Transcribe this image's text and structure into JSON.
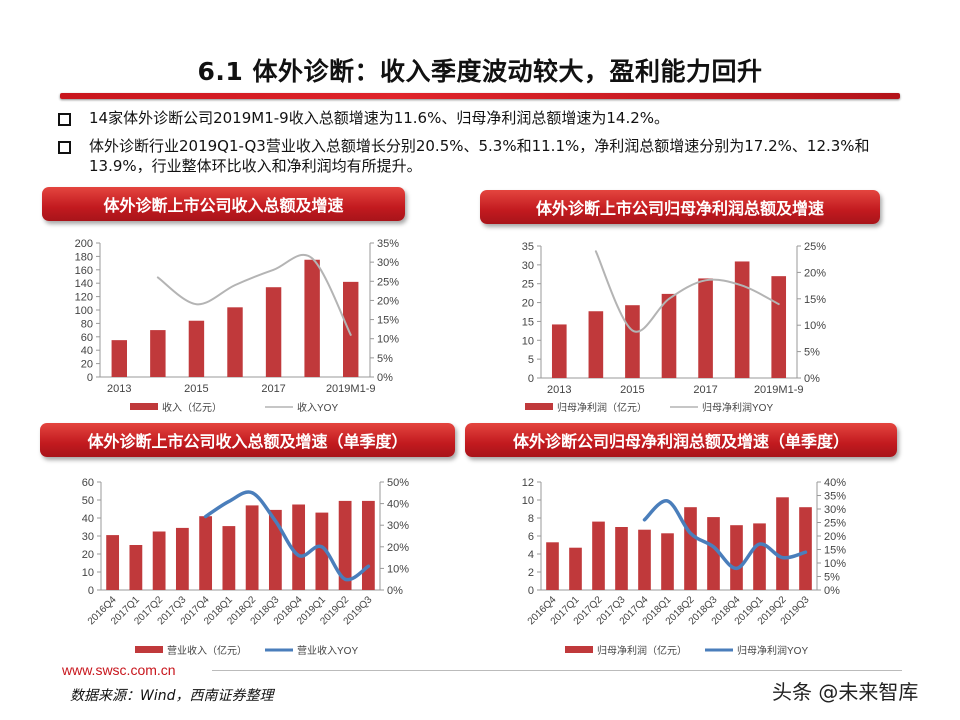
{
  "slide": {
    "title": "6.1 体外诊断：收入季度波动较大，盈利能力回升",
    "bullets": [
      "14家体外诊断公司2019M1-9收入总额增速为11.6%、归母净利润总额增速为14.2%。",
      "体外诊断行业2019Q1-Q3营业收入总额增长分别20.5%、5.3%和11.1%，净利润总额增速分别为17.2%、12.3%和13.9%，行业整体环比收入和净利润均有所提升。"
    ],
    "website": "www.swsc.com.cn",
    "source": "数据来源：Wind，西南证券整理",
    "watermark": "头条 @未来智库",
    "colors": {
      "accent": "#c8161d",
      "bar": "#c0393b",
      "line_gray": "#b4b4b4",
      "line_blue": "#4a7ebb"
    }
  },
  "chart_data": [
    {
      "banner": "体外诊断上市公司收入总额及增速",
      "type": "bar+line",
      "x_tick_labels": [
        "2013",
        "",
        "2015",
        "",
        "2017",
        "",
        "2019M1-9"
      ],
      "series": [
        {
          "name": "收入（亿元）",
          "type": "bar",
          "axis": "left",
          "values": [
            55,
            70,
            84,
            104,
            134,
            175,
            142
          ]
        },
        {
          "name": "收入YOY",
          "type": "line",
          "axis": "right",
          "values": [
            null,
            26,
            19,
            24,
            28,
            31,
            11
          ]
        }
      ],
      "y_left": {
        "range": [
          0,
          200
        ],
        "ticks": [
          "0",
          "20",
          "40",
          "60",
          "80",
          "100",
          "120",
          "140",
          "160",
          "180",
          "200"
        ]
      },
      "y_right": {
        "range": [
          0,
          35
        ],
        "ticks": [
          "0%",
          "5%",
          "10%",
          "15%",
          "20%",
          "25%",
          "30%",
          "35%"
        ]
      },
      "line_style": "gray-thin",
      "legend": "bottom",
      "grid": false
    },
    {
      "banner": "体外诊断上市公司归母净利润总额及增速",
      "type": "bar+line",
      "x_tick_labels": [
        "2013",
        "",
        "2015",
        "",
        "2017",
        "",
        "2019M1-9"
      ],
      "series": [
        {
          "name": "归母净利润（亿元）",
          "type": "bar",
          "axis": "left",
          "values": [
            14.2,
            17.7,
            19.3,
            22.3,
            26.4,
            30.9,
            27.0
          ]
        },
        {
          "name": "归母净利润YOY",
          "type": "line",
          "axis": "right",
          "values": [
            null,
            24,
            9,
            15,
            18.5,
            17.5,
            14
          ]
        }
      ],
      "y_left": {
        "range": [
          0,
          35
        ],
        "ticks": [
          "0",
          "5",
          "10",
          "15",
          "20",
          "25",
          "30",
          "35"
        ]
      },
      "y_right": {
        "range": [
          0,
          25
        ],
        "ticks": [
          "0%",
          "5%",
          "10%",
          "15%",
          "20%",
          "25%"
        ]
      },
      "line_style": "gray-thin",
      "legend": "bottom",
      "grid": false
    },
    {
      "banner": "体外诊断上市公司收入总额及增速（单季度）",
      "type": "bar+line",
      "x_tick_labels": [
        "2016Q4",
        "2017Q1",
        "2017Q2",
        "2017Q3",
        "2017Q4",
        "2018Q1",
        "2018Q2",
        "2018Q3",
        "2018Q4",
        "2019Q1",
        "2019Q2",
        "2019Q3"
      ],
      "series": [
        {
          "name": "营业收入（亿元）",
          "type": "bar",
          "axis": "left",
          "values": [
            30.5,
            25,
            32.5,
            34.5,
            41,
            35.5,
            47,
            44.5,
            47.5,
            43,
            49.5,
            49.5
          ]
        },
        {
          "name": "营业收入YOY",
          "type": "line",
          "axis": "right",
          "values": [
            null,
            null,
            null,
            null,
            34,
            41,
            45,
            32,
            16,
            20,
            5,
            11
          ]
        }
      ],
      "y_left": {
        "range": [
          0,
          60
        ],
        "ticks": [
          "0",
          "10",
          "20",
          "30",
          "40",
          "50",
          "60"
        ]
      },
      "y_right": {
        "range": [
          0,
          50
        ],
        "ticks": [
          "0%",
          "10%",
          "20%",
          "30%",
          "40%",
          "50%"
        ]
      },
      "line_style": "blue-thick",
      "legend": "bottom",
      "grid": false
    },
    {
      "banner": "体外诊断公司归母净利润总额及增速（单季度）",
      "type": "bar+line",
      "x_tick_labels": [
        "2016Q4",
        "2017Q1",
        "2017Q2",
        "2017Q3",
        "2017Q4",
        "2018Q1",
        "2018Q2",
        "2018Q3",
        "2018Q4",
        "2019Q1",
        "2019Q2",
        "2019Q3"
      ],
      "series": [
        {
          "name": "归母净利润（亿元）",
          "type": "bar",
          "axis": "left",
          "values": [
            5.3,
            4.7,
            7.6,
            7.0,
            6.7,
            6.3,
            9.2,
            8.1,
            7.2,
            7.4,
            10.3,
            9.2
          ]
        },
        {
          "name": "归母净利润YOY",
          "type": "line",
          "axis": "right",
          "values": [
            null,
            null,
            null,
            null,
            26,
            33,
            21,
            16,
            8,
            17,
            12,
            14
          ]
        }
      ],
      "y_left": {
        "range": [
          0,
          12
        ],
        "ticks": [
          "0",
          "2",
          "4",
          "6",
          "8",
          "10",
          "12"
        ]
      },
      "y_right": {
        "range": [
          0,
          40
        ],
        "ticks": [
          "0%",
          "5%",
          "10%",
          "15%",
          "20%",
          "25%",
          "30%",
          "35%",
          "40%"
        ]
      },
      "line_style": "blue-thick",
      "legend": "bottom",
      "grid": false
    }
  ]
}
